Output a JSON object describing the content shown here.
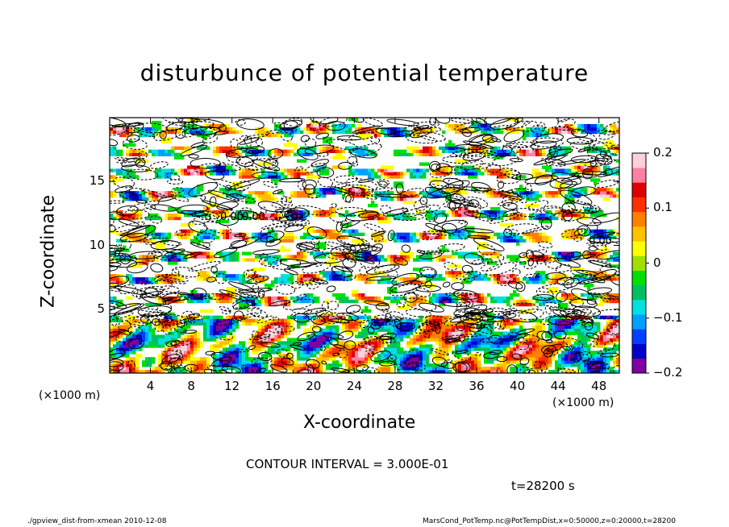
{
  "chart_data": {
    "type": "heatmap",
    "title": "disturbunce of potential temperature",
    "xlabel": "X-coordinate",
    "ylabel": "Z-coordinate",
    "x_unit": "(×1000 m)",
    "y_unit": "(×1000 m)",
    "xlim": [
      0,
      50
    ],
    "ylim": [
      0,
      20
    ],
    "x_ticks": [
      4,
      8,
      12,
      16,
      20,
      24,
      28,
      32,
      36,
      40,
      44,
      48
    ],
    "y_ticks": [
      5,
      10,
      15
    ],
    "colorbar": {
      "range": [
        -0.2,
        0.2
      ],
      "tick_labels": [
        "0.2",
        "0.1",
        "0",
        "−0.1",
        "−0.2"
      ],
      "tick_values": [
        0.2,
        0.1,
        0,
        -0.1,
        -0.2
      ],
      "colors": [
        "#8000a0",
        "#0000c8",
        "#0040ff",
        "#00a0ff",
        "#00e0e0",
        "#00c060",
        "#00e000",
        "#a0e000",
        "#ffff00",
        "#ffc000",
        "#ff8000",
        "#ff3000",
        "#e00000",
        "#ff80a0",
        "#ffd0d8"
      ]
    },
    "contour_labels": [
      "0.00",
      "0.00",
      "0.00"
    ],
    "contour_interval": "CONTOUR INTERVAL = 3.000E-01",
    "time": "t=28200 s"
  },
  "footer": {
    "left": "./gpview_dist-from-xmean  2010-12-08",
    "right": "MarsCond_PotTemp.nc@PotTempDist,x=0:50000,z=0:20000,t=28200"
  }
}
